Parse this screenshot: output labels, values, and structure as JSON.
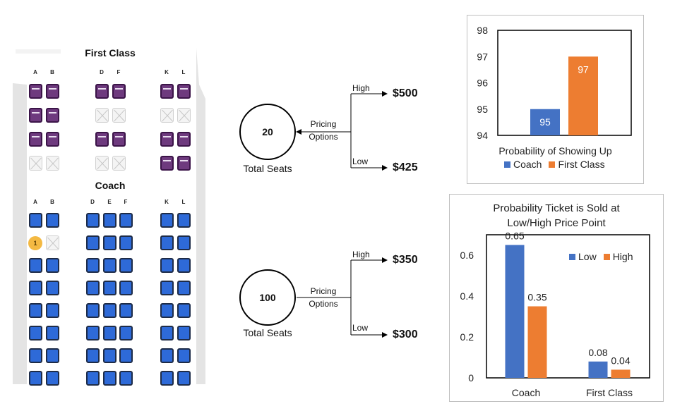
{
  "seat_map": {
    "first_class": {
      "title": "First Class",
      "columns": [
        "A",
        "B",
        "D",
        "F",
        "K",
        "L"
      ],
      "rows": [
        [
          "avail",
          "avail",
          "avail",
          "avail",
          "avail",
          "avail"
        ],
        [
          "avail",
          "avail",
          "taken",
          "taken",
          "taken",
          "taken"
        ],
        [
          "avail",
          "avail",
          "avail",
          "avail",
          "avail",
          "avail"
        ],
        [
          "taken",
          "taken",
          "taken",
          "taken",
          "avail",
          "avail"
        ]
      ]
    },
    "coach": {
      "title": "Coach",
      "columns": [
        "A",
        "B",
        "D",
        "E",
        "F",
        "K",
        "L"
      ],
      "rows": [
        [
          "avail",
          "avail",
          "avail",
          "avail",
          "avail",
          "avail",
          "avail"
        ],
        [
          "badge",
          "taken",
          "avail",
          "avail",
          "avail",
          "avail",
          "avail"
        ],
        [
          "avail",
          "avail",
          "avail",
          "avail",
          "avail",
          "avail",
          "avail"
        ],
        [
          "avail",
          "avail",
          "avail",
          "avail",
          "avail",
          "avail",
          "avail"
        ],
        [
          "avail",
          "avail",
          "avail",
          "avail",
          "avail",
          "avail",
          "avail"
        ],
        [
          "avail",
          "avail",
          "avail",
          "avail",
          "avail",
          "avail",
          "avail"
        ],
        [
          "avail",
          "avail",
          "avail",
          "avail",
          "avail",
          "avail",
          "avail"
        ],
        [
          "avail",
          "avail",
          "avail",
          "avail",
          "avail",
          "avail",
          "avail"
        ]
      ],
      "badge_label": "1"
    },
    "colors": {
      "first_seat": "#6e3a7e",
      "coach_seat": "#2e6ad8",
      "badge": "#f4b942"
    }
  },
  "trees": [
    {
      "seats": "20",
      "seats_caption": "Total Seats",
      "options_line1": "Pricing",
      "options_line2": "Options",
      "high_label": "High",
      "low_label": "Low",
      "high_price": "$500",
      "low_price": "$425"
    },
    {
      "seats": "100",
      "seats_caption": "Total Seats",
      "options_line1": "Pricing",
      "options_line2": "Options",
      "high_label": "High",
      "low_label": "Low",
      "high_price": "$350",
      "low_price": "$300"
    }
  ],
  "chart_data": [
    {
      "type": "bar",
      "title": "",
      "xlabel": "Probability of Showing Up",
      "categories": [
        "Coach",
        "First Class"
      ],
      "values": [
        95,
        97
      ],
      "data_labels": [
        "95",
        "97"
      ],
      "series_colors": [
        "#4472c4",
        "#ed7d31"
      ],
      "ylim": [
        94,
        98
      ],
      "yticks": [
        "94",
        "95",
        "96",
        "97",
        "98"
      ],
      "legend": [
        "Coach",
        "First Class"
      ],
      "legend_position": "bottom",
      "grid": false
    },
    {
      "type": "bar",
      "title": "Probability Ticket is Sold at Low/High Price Point",
      "title_line1": "Probability Ticket is Sold at",
      "title_line2": "Low/High Price Point",
      "categories": [
        "Coach",
        "First Class"
      ],
      "series": [
        {
          "name": "Low",
          "values": [
            0.65,
            0.08
          ],
          "labels": [
            "0.65",
            "0.08"
          ],
          "color": "#4472c4"
        },
        {
          "name": "High",
          "values": [
            0.35,
            0.04
          ],
          "labels": [
            "0.35",
            "0.04"
          ],
          "color": "#ed7d31"
        }
      ],
      "ylim": [
        0,
        0.7
      ],
      "yticks": [
        "0",
        "0.2",
        "0.4",
        "0.6"
      ],
      "legend_position": "top-right",
      "grid": false
    }
  ]
}
